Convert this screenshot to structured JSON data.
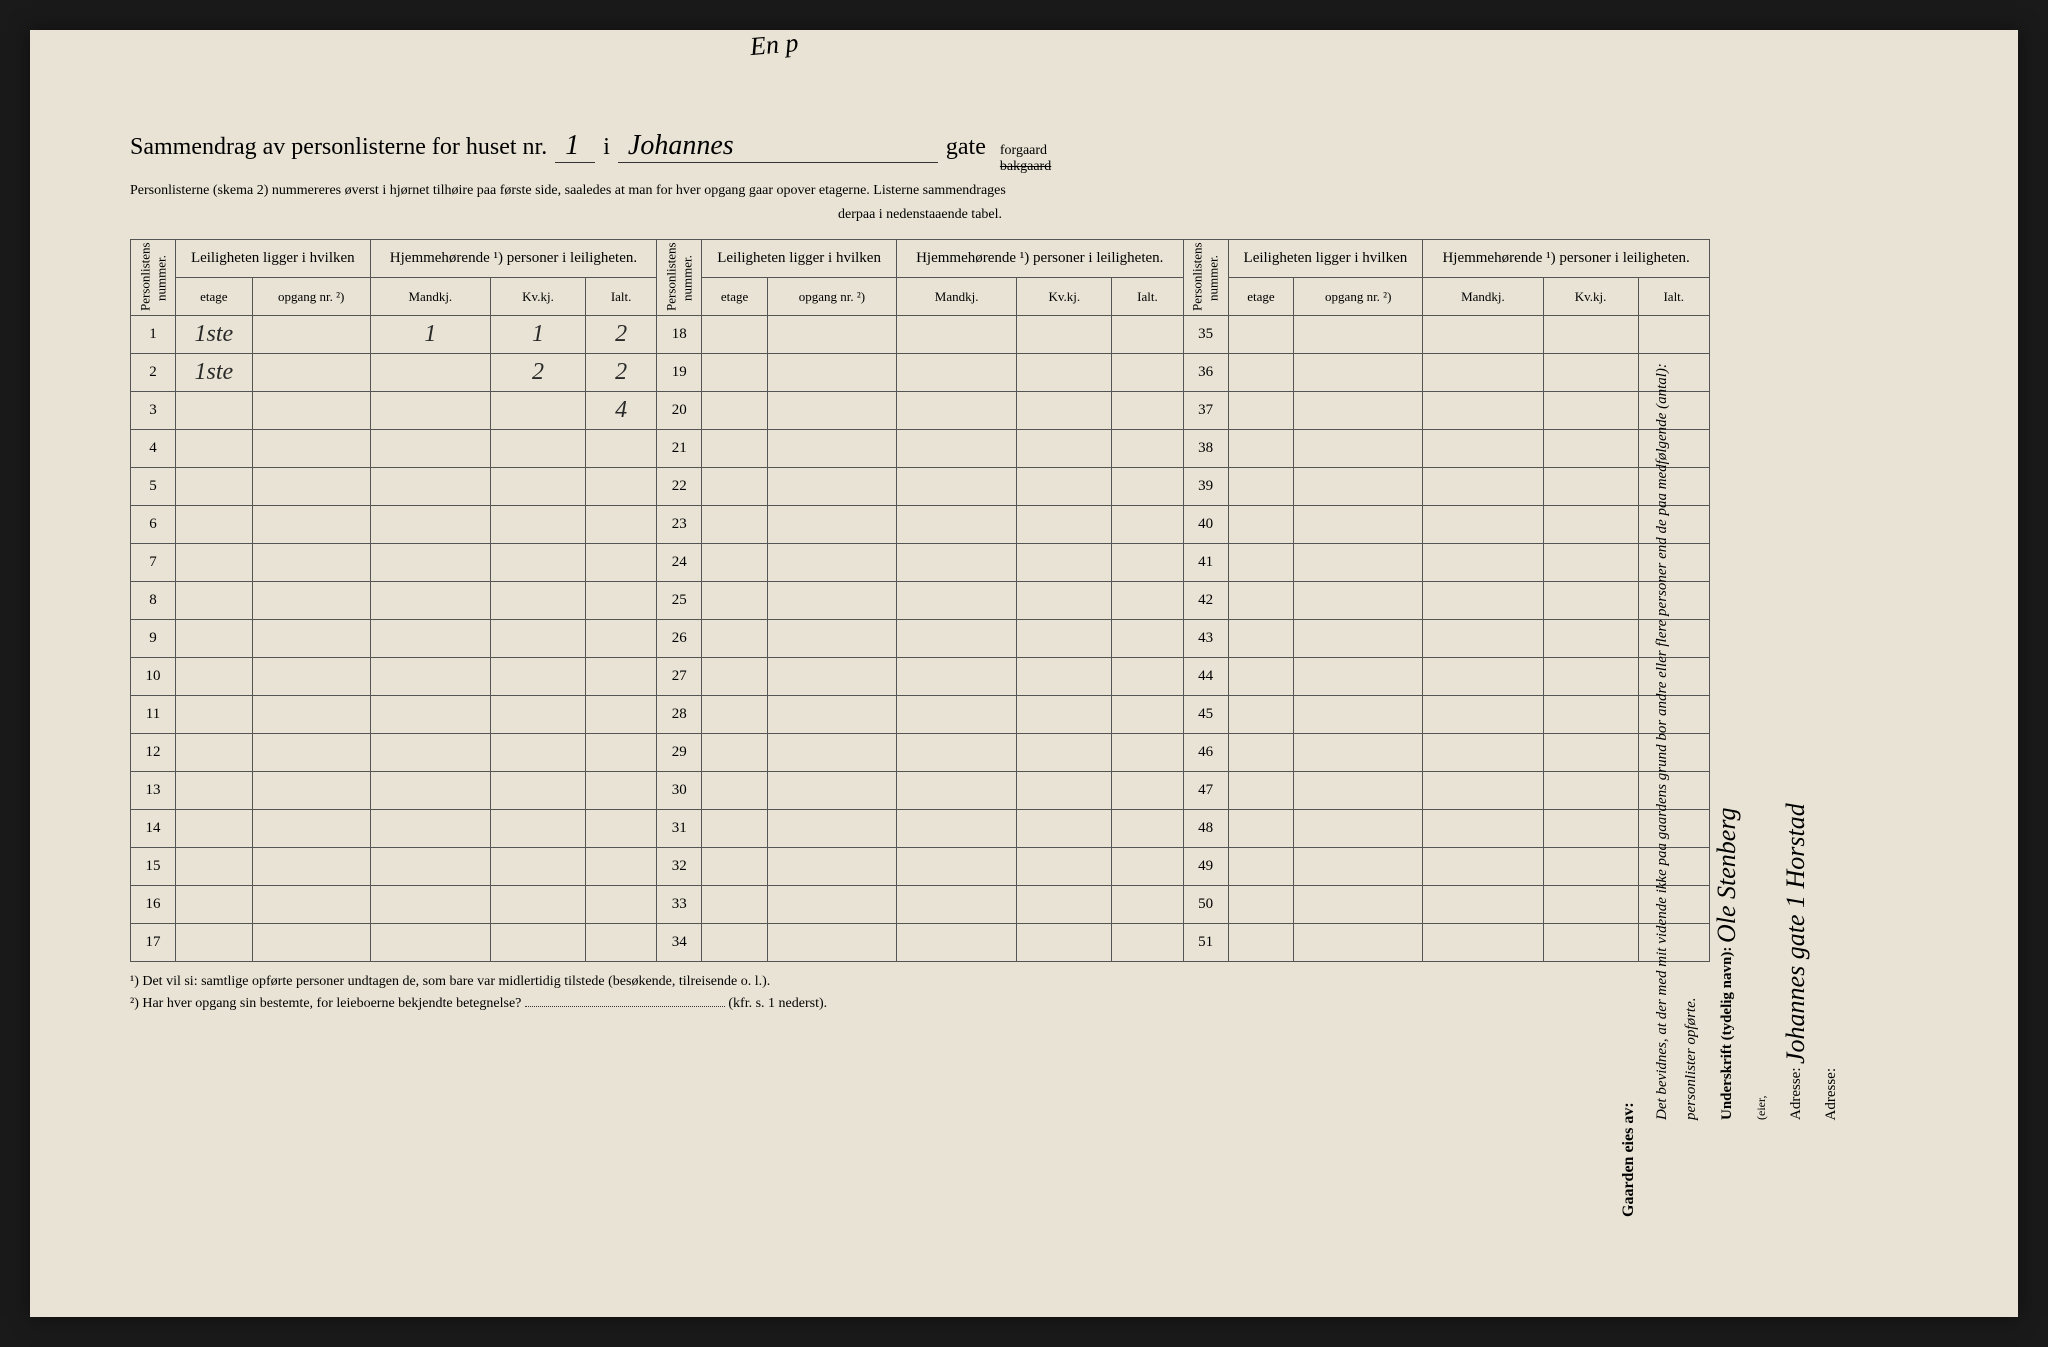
{
  "title": {
    "prefix": "Sammendrag av personlisterne for huset nr.",
    "house_nr": "1",
    "in": "i",
    "street": "Johannes",
    "gate": "gate",
    "forgaard": "forgaard",
    "bakgaard": "bakgaard"
  },
  "subtitle1": "Personlisterne (skema 2) nummereres øverst i hjørnet tilhøire paa første side, saaledes at man for hver opgang gaar opover etagerne.  Listerne sammendrages",
  "subtitle2": "derpaa i nedenstaaende tabel.",
  "headers": {
    "personlistens": "Personlistens nummer.",
    "leiligheten": "Leiligheten ligger i hvilken",
    "hjemme": "Hjemmehørende ¹) personer i leiligheten.",
    "etage": "etage",
    "opgang": "opgang nr. ²)",
    "mandkj": "Mandkj.",
    "kvkj": "Kv.kj.",
    "ialt": "Ialt."
  },
  "rows": [
    {
      "n": 1,
      "etage": "1ste",
      "mandkj": "1",
      "kvkj": "1",
      "ialt": "2"
    },
    {
      "n": 2,
      "etage": "1ste",
      "mandkj": "",
      "kvkj": "2",
      "ialt": "2"
    },
    {
      "n": 3,
      "ialt": "4"
    },
    {
      "n": 4
    },
    {
      "n": 5
    },
    {
      "n": 6
    },
    {
      "n": 7
    },
    {
      "n": 8
    },
    {
      "n": 9
    },
    {
      "n": 10
    },
    {
      "n": 11
    },
    {
      "n": 12
    },
    {
      "n": 13
    },
    {
      "n": 14
    },
    {
      "n": 15
    },
    {
      "n": 16
    },
    {
      "n": 17
    }
  ],
  "rows2": [
    18,
    19,
    20,
    21,
    22,
    23,
    24,
    25,
    26,
    27,
    28,
    29,
    30,
    31,
    32,
    33,
    34
  ],
  "rows3": [
    35,
    36,
    37,
    38,
    39,
    40,
    41,
    42,
    43,
    44,
    45,
    46,
    47,
    48,
    49,
    50,
    51
  ],
  "footnote1": "¹)  Det vil si: samtlige opførte personer undtagen de, som bare var midlertidig tilstede (besøkende, tilreisende o. l.).",
  "footnote2_prefix": "²)  Har hver opgang sin bestemte, for leieboerne bekjendte betegnelse?",
  "footnote2_suffix": "(kfr. s. 1 nederst).",
  "owner_label": "Gaarden eies av:",
  "side": {
    "bevidnes": "Det bevidnes, at der med mit vidende ikke paa gaardens grund bor andre eller flere personer end de paa medfølgende (antal):",
    "personlister": "personlister opførte.",
    "underskrift_label": "Underskrift (tydelig navn):",
    "underskrift_value": "Ole Stenberg",
    "eier": "(eier,",
    "adresse_label": "Adresse:",
    "adresse_value": "Johannes gate 1  Horstad",
    "adresse2_label": "Adresse:"
  },
  "top_scribble": "En p",
  "colors": {
    "paper": "#e8e3d4",
    "ink": "#2a2a2a",
    "border": "#555555",
    "bg": "#1a1a1a"
  }
}
